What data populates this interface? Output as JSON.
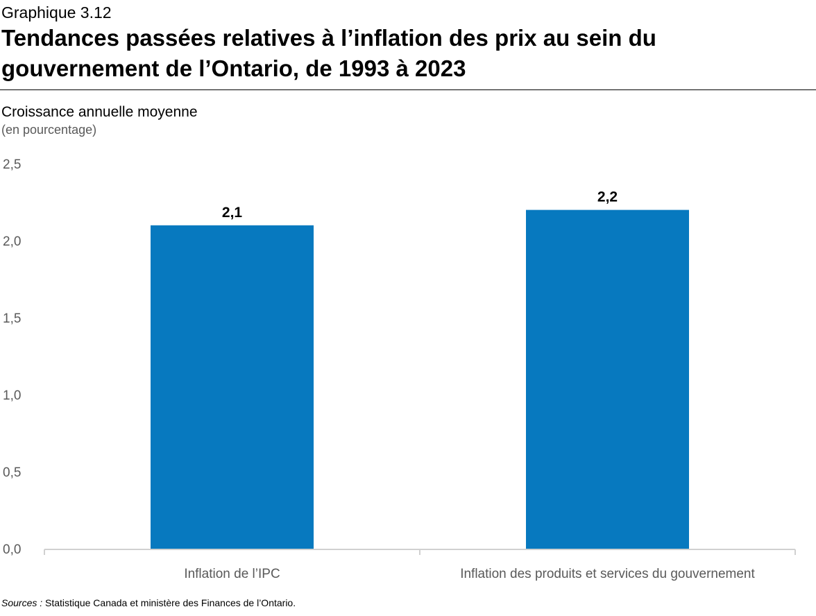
{
  "header": {
    "kicker": "Graphique 3.12",
    "title": "Tendances passées relatives à l’inflation des prix au sein du gouvernement de l’Ontario, de 1993 à 2023"
  },
  "axis": {
    "y_title": "Croissance annuelle moyenne",
    "y_unit": "(en pourcentage)"
  },
  "source": {
    "label": "Sources :",
    "text": " Statistique Canada et ministère des Finances de l’Ontario."
  },
  "colors": {
    "bar": "#0779BF",
    "axis_line": "#D0D0D0",
    "tick_label": "#595959",
    "data_label": "#000000"
  },
  "chart_data": {
    "type": "bar",
    "title": "Tendances passées relatives à l’inflation des prix au sein du gouvernement de l’Ontario, de 1993 à 2023",
    "xlabel": "",
    "ylabel": "Croissance annuelle moyenne (en pourcentage)",
    "categories": [
      "Inflation de l’IPC",
      "Inflation des produits et services du gouvernement"
    ],
    "values": [
      2.1,
      2.2
    ],
    "value_labels": [
      "2,1",
      "2,2"
    ],
    "ylim": [
      0,
      2.5
    ],
    "yticks": [
      0,
      0.5,
      1.0,
      1.5,
      2.0,
      2.5
    ],
    "ytick_labels": [
      "0,0",
      "0,5",
      "1,0",
      "1,5",
      "2,0",
      "2,5"
    ],
    "grid": false,
    "legend": "none"
  }
}
